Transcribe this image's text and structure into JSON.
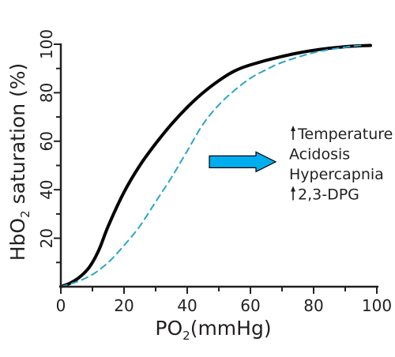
{
  "chart_data": {
    "type": "line",
    "xlabel": "PO",
    "xlabel_sub": "2",
    "xlabel_unit": "(mmHg)",
    "ylabel": "HbO",
    "ylabel_sub": "2",
    "ylabel_rest": " saturation (%)",
    "xlim": [
      0,
      100
    ],
    "ylim": [
      0,
      100
    ],
    "x_ticks": [
      0,
      20,
      40,
      60,
      80,
      100
    ],
    "x_tick_labels": [
      "0",
      "20",
      "40",
      "60",
      "80",
      "100"
    ],
    "y_ticks": [
      20,
      40,
      60,
      80,
      100
    ],
    "y_tick_labels": [
      "20",
      "40",
      "60",
      "80",
      "100"
    ],
    "grid": false,
    "series": [
      {
        "style": "solid",
        "color": "#000000",
        "x": [
          0,
          3,
          6,
          9,
          12,
          15,
          20,
          25,
          30,
          35,
          40,
          45,
          50,
          55,
          60,
          70,
          80,
          90,
          98
        ],
        "y": [
          0,
          1.5,
          4,
          8,
          15,
          25,
          39,
          50,
          59,
          67,
          74,
          80,
          85,
          89,
          91.5,
          95,
          97.5,
          99,
          99.5
        ]
      },
      {
        "style": "dashed",
        "color": "#2aa6c7",
        "x": [
          0,
          5,
          10,
          15,
          20,
          25,
          30,
          35,
          40,
          45,
          50,
          55,
          60,
          65,
          70,
          80,
          90,
          95
        ],
        "y": [
          0,
          2,
          5,
          10,
          17,
          25,
          35,
          45,
          56,
          67,
          75,
          81,
          86,
          89.5,
          92.5,
          96.5,
          98.8,
          99.5
        ]
      }
    ],
    "arrow": {
      "from": [
        47,
        51.5
      ],
      "to": [
        68,
        51.5
      ],
      "color": "#00aeef",
      "direction": "right"
    },
    "annotations": [
      {
        "text": "Temperature",
        "arrow": "up"
      },
      {
        "text": "Acidosis",
        "arrow": ""
      },
      {
        "text": "Hypercapnia",
        "arrow": ""
      },
      {
        "text": "2,3-DPG",
        "arrow": "up"
      }
    ]
  }
}
